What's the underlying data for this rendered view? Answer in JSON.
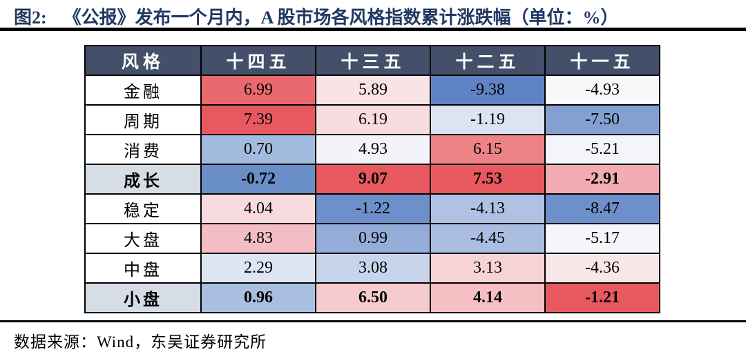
{
  "title": {
    "prefix": "图2:",
    "text": "《公报》发布一个月内，A 股市场各风格指数累计涨跌幅（单位：%）"
  },
  "footer": {
    "source": "数据来源：Wind，东吴证券研究所"
  },
  "colors": {
    "title_color": "#1F3864",
    "header_bg": "#44506A",
    "header_text": "#FFFFFF",
    "bold_label_bg": "#D7DDE5",
    "grid_border": "#000000",
    "max_red": "#E7595E",
    "min_blue": "#6A8EC8"
  },
  "chart_data": {
    "type": "heatmap",
    "title": "《公报》发布一个月内，A股市场各风格指数累计涨跌幅",
    "unit": "%",
    "color_scale": "per-column blue(min) → white(mid) → red(max)",
    "columns": [
      "风格",
      "十四五",
      "十三五",
      "十二五",
      "十一五"
    ],
    "rows": [
      {
        "label": "金融",
        "bold": false,
        "values": [
          6.99,
          5.89,
          -9.38,
          -4.93
        ],
        "cell_colors": [
          "#E9696E",
          "#F9E3E5",
          "#6083C5",
          "#F9F8FB"
        ]
      },
      {
        "label": "周期",
        "bold": false,
        "values": [
          7.39,
          6.19,
          -1.19,
          -7.5
        ],
        "cell_colors": [
          "#E7595E",
          "#F8DCDF",
          "#DCE3F3",
          "#84A0D1"
        ]
      },
      {
        "label": "消费",
        "bold": false,
        "values": [
          0.7,
          4.93,
          6.15,
          -5.21
        ],
        "cell_colors": [
          "#A3BBDF",
          "#F2F4F9",
          "#ED8287",
          "#F3F5FA"
        ]
      },
      {
        "label": "成长",
        "bold": true,
        "values": [
          -0.72,
          9.07,
          7.53,
          -2.91
        ],
        "cell_colors": [
          "#6A8EC8",
          "#E7595E",
          "#E7595E",
          "#F2ACB2"
        ]
      },
      {
        "label": "稳定",
        "bold": false,
        "values": [
          4.04,
          -1.22,
          -4.13,
          -8.47
        ],
        "cell_colors": [
          "#F8DBDE",
          "#6E90CA",
          "#AFC2E3",
          "#6E90CA"
        ]
      },
      {
        "label": "大盘",
        "bold": false,
        "values": [
          4.83,
          0.99,
          -4.45,
          -5.17
        ],
        "cell_colors": [
          "#F3BEC3",
          "#93ACD8",
          "#ABBEE1",
          "#F4F6FA"
        ]
      },
      {
        "label": "中盘",
        "bold": false,
        "values": [
          2.29,
          3.08,
          3.13,
          -4.36
        ],
        "cell_colors": [
          "#DDE5F3",
          "#C8D4EC",
          "#F8D3D6",
          "#F9E6E8"
        ]
      },
      {
        "label": "小盘",
        "bold": true,
        "values": [
          0.96,
          6.5,
          4.14,
          -1.21
        ],
        "cell_colors": [
          "#A9BEE1",
          "#F6CBCE",
          "#F5BFC4",
          "#E7595E"
        ]
      }
    ]
  }
}
